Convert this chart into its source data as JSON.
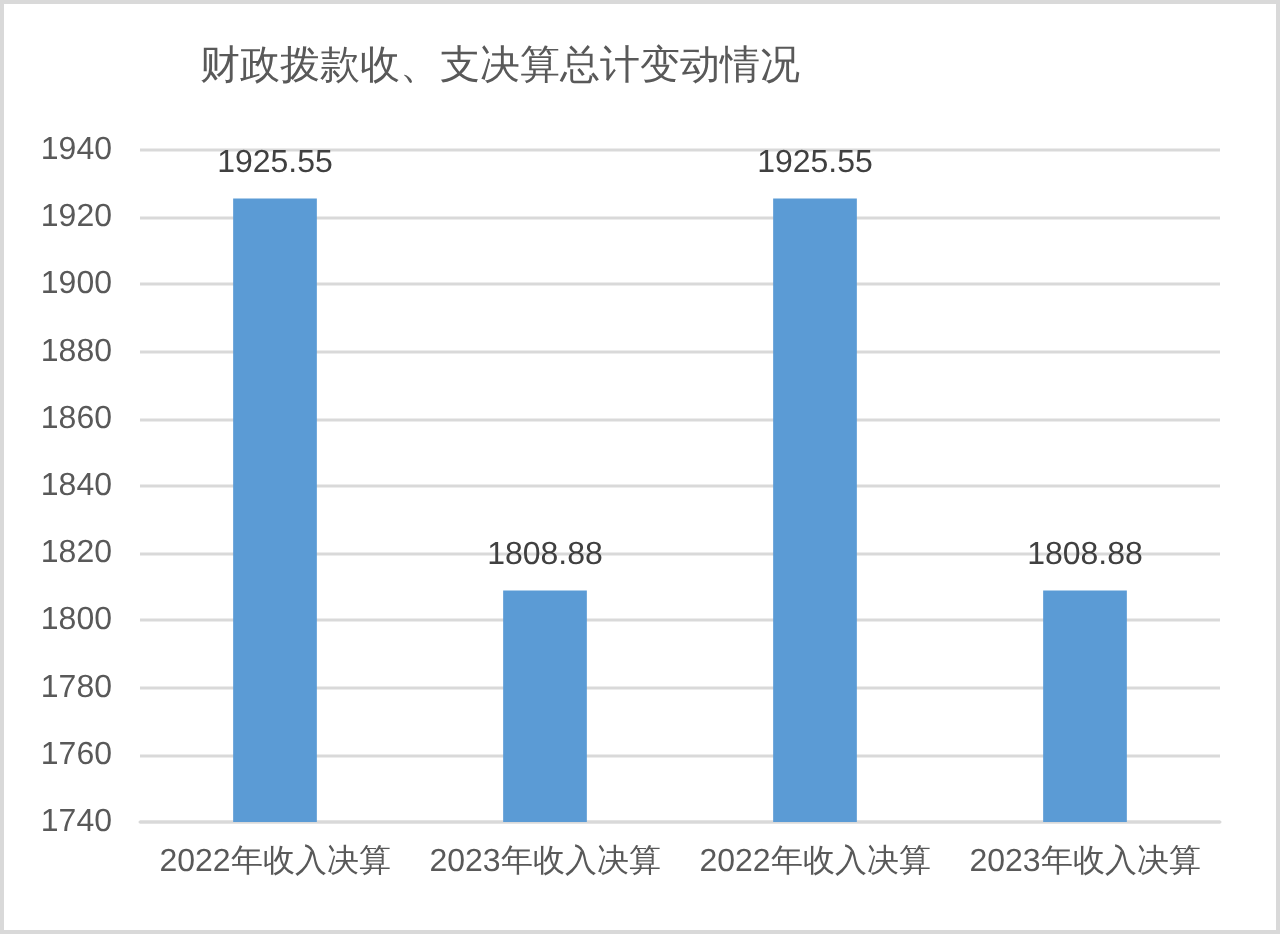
{
  "chart_data": {
    "type": "bar",
    "title": "财政拨款收、支决算总计变动情况",
    "categories": [
      "2022年收入决算",
      "2023年收入决算",
      "2022年收入决算",
      "2023年收入决算"
    ],
    "values": [
      1925.55,
      1808.88,
      1925.55,
      1808.88
    ],
    "color": "#5b9bd5",
    "ylim": [
      1740,
      1940
    ],
    "yticks": [
      1740,
      1760,
      1780,
      1800,
      1820,
      1840,
      1860,
      1880,
      1900,
      1920,
      1940
    ],
    "grid": "y",
    "data_labels": true
  }
}
